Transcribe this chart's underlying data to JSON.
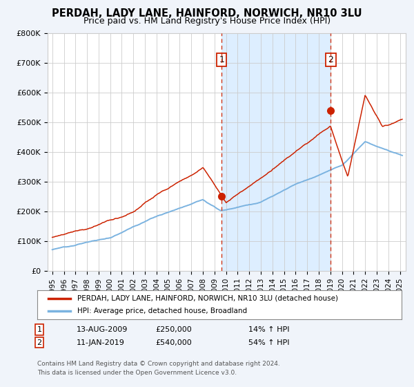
{
  "title": "PERDAH, LADY LANE, HAINFORD, NORWICH, NR10 3LU",
  "subtitle": "Price paid vs. HM Land Registry's House Price Index (HPI)",
  "title_fontsize": 10.5,
  "subtitle_fontsize": 9,
  "ylim": [
    0,
    800000
  ],
  "yticks": [
    0,
    100000,
    200000,
    300000,
    400000,
    500000,
    600000,
    700000,
    800000
  ],
  "ytick_labels": [
    "£0",
    "£100K",
    "£200K",
    "£300K",
    "£400K",
    "£500K",
    "£600K",
    "£700K",
    "£800K"
  ],
  "xtick_years": [
    "1995",
    "1996",
    "1997",
    "1998",
    "1999",
    "2000",
    "2001",
    "2002",
    "2003",
    "2004",
    "2005",
    "2006",
    "2007",
    "2008",
    "2009",
    "2010",
    "2011",
    "2012",
    "2013",
    "2014",
    "2015",
    "2016",
    "2017",
    "2018",
    "2019",
    "2020",
    "2021",
    "2022",
    "2023",
    "2024",
    "2025"
  ],
  "sale1_year": 2009.62,
  "sale1_price": 250000,
  "sale1_label": "1",
  "sale2_year": 2019.04,
  "sale2_price": 540000,
  "sale2_label": "2",
  "hpi_line_color": "#7bb3e0",
  "property_line_color": "#cc2200",
  "vline_color": "#cc2200",
  "dot_color": "#cc2200",
  "background_color": "#f0f4fa",
  "plot_bg_color": "#ffffff",
  "shaded_region_color": "#ddeeff",
  "grid_color": "#cccccc",
  "legend_label_property": "PERDAH, LADY LANE, HAINFORD, NORWICH, NR10 3LU (detached house)",
  "legend_label_hpi": "HPI: Average price, detached house, Broadland",
  "annotation1_date": "13-AUG-2009",
  "annotation1_price": "£250,000",
  "annotation1_hpi": "14% ↑ HPI",
  "annotation2_date": "11-JAN-2019",
  "annotation2_price": "£540,000",
  "annotation2_hpi": "54% ↑ HPI",
  "footer": "Contains HM Land Registry data © Crown copyright and database right 2024.\nThis data is licensed under the Open Government Licence v3.0."
}
